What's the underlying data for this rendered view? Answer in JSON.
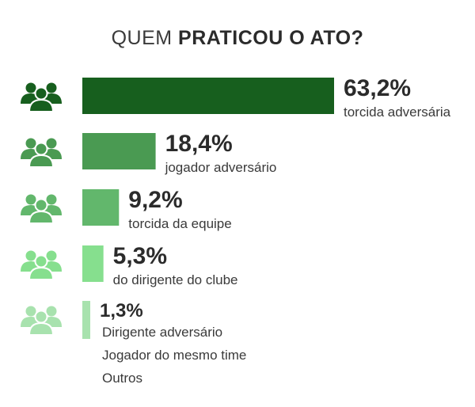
{
  "title": {
    "light": "QUEM",
    "bold": "PRATICOU O ATO?"
  },
  "chart_data": {
    "type": "bar",
    "orientation": "horizontal",
    "unit": "%",
    "categories": [
      "torcida adversária",
      "jogador adversário",
      "torcida da equipe",
      "do dirigente do clube",
      "Dirigente adversário / Jogador do mesmo time / Outros"
    ],
    "values": [
      63.2,
      18.4,
      9.2,
      5.3,
      1.3
    ],
    "value_labels": [
      "63,2%",
      "18,4%",
      "9,2%",
      "5,3%",
      "1,3%"
    ],
    "labels": [
      [
        "torcida adversária"
      ],
      [
        "jogador adversário"
      ],
      [
        "torcida da equipe"
      ],
      [
        "do dirigente do clube"
      ],
      [
        "Dirigente adversário",
        "Jogador do mesmo time",
        "Outros"
      ]
    ],
    "colors": [
      "#175f1e",
      "#4a9a52",
      "#62b76c",
      "#86df8e",
      "#a8e2ae"
    ],
    "icon": "people-group-icon",
    "xlim": [
      0,
      63.2
    ],
    "grid": false,
    "legend": "none"
  }
}
